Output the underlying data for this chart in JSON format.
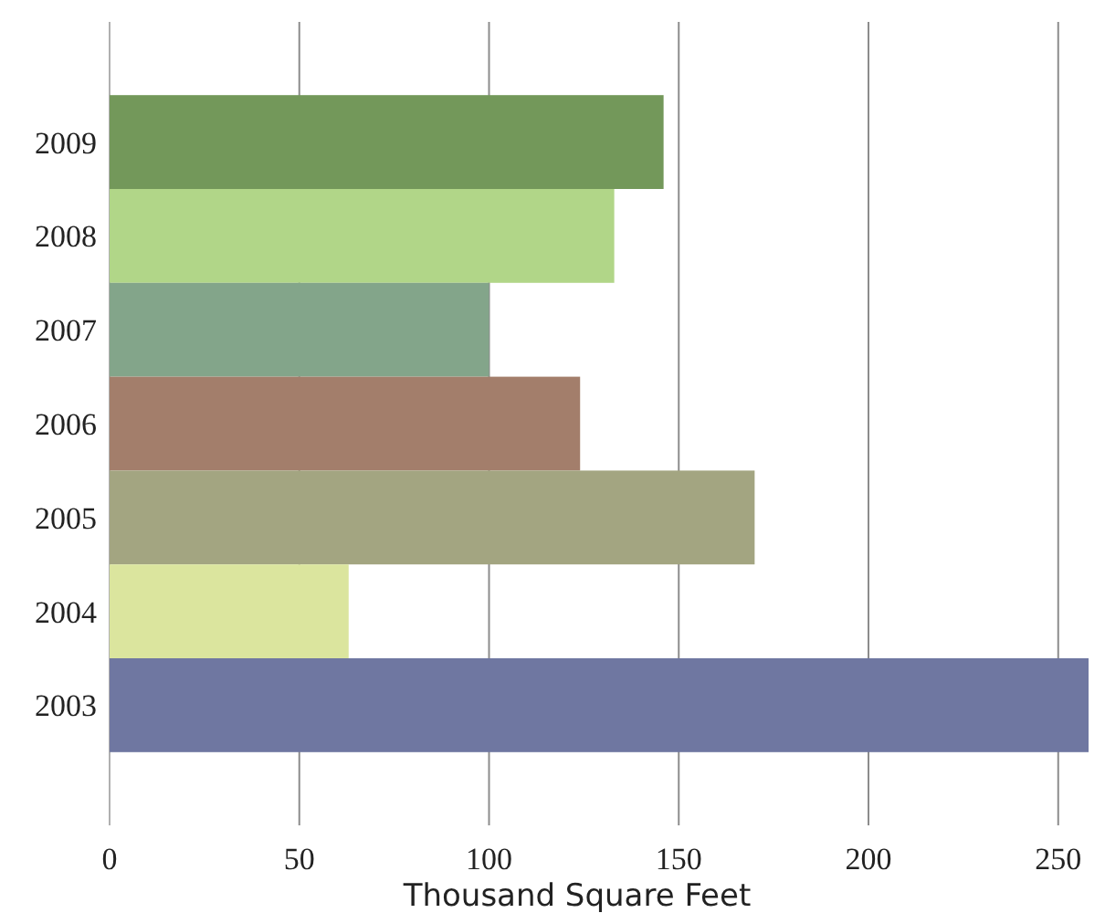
{
  "chart_data": {
    "type": "bar",
    "orientation": "horizontal",
    "xlabel": "Thousand Square Feet",
    "categories": [
      "2009",
      "2008",
      "2007",
      "2006",
      "2005",
      "2004",
      "2003"
    ],
    "values": [
      146,
      133,
      100,
      124,
      170,
      63,
      258
    ],
    "colors": [
      "#73985a",
      "#b1d688",
      "#83a58a",
      "#a37e6b",
      "#a3a581",
      "#dbe59e",
      "#6f77a1"
    ],
    "xlim": [
      0,
      258
    ],
    "xticks": [
      0,
      50,
      100,
      150,
      200,
      250
    ],
    "grid": "x"
  }
}
